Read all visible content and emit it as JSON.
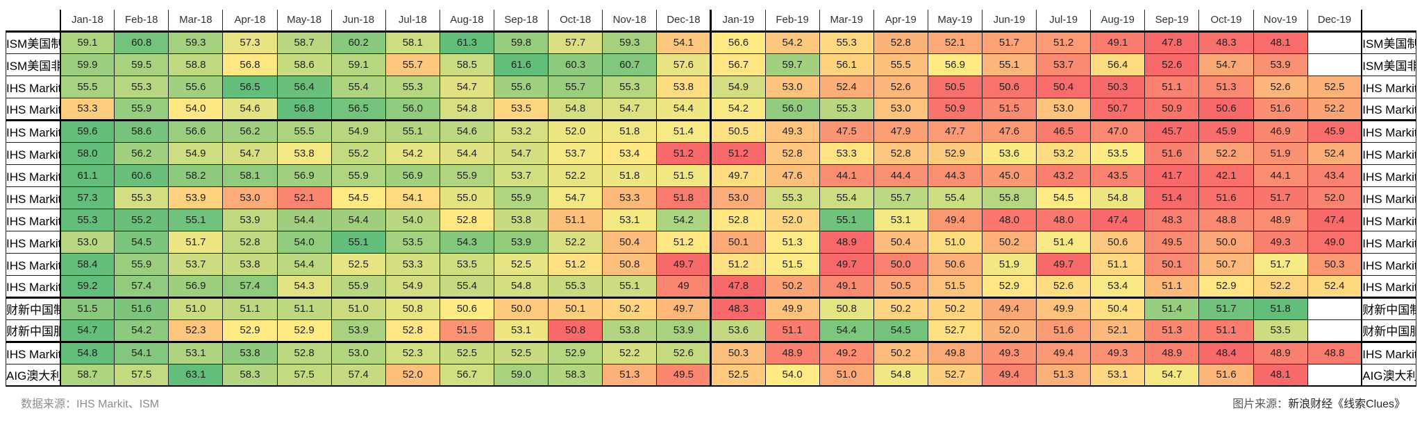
{
  "chart_data": {
    "type": "heatmap",
    "x": [
      "Jan-18",
      "Feb-18",
      "Mar-18",
      "Apr-18",
      "May-18",
      "Jun-18",
      "Jul-18",
      "Aug-18",
      "Sep-18",
      "Oct-18",
      "Nov-18",
      "Dec-18",
      "Jan-19",
      "Feb-19",
      "Mar-19",
      "Apr-19",
      "May-19",
      "Jun-19",
      "Jul-19",
      "Aug-19",
      "Sep-19",
      "Oct-19",
      "Nov-19",
      "Dec-19"
    ],
    "series": [
      {
        "name": "ISM美国制造业PMI",
        "group_end": false,
        "values": [
          "59.1",
          "60.8",
          "59.3",
          "57.3",
          "58.7",
          "60.2",
          "58.1",
          "61.3",
          "59.8",
          "57.7",
          "59.3",
          "54.1",
          "56.6",
          "54.2",
          "55.3",
          "52.8",
          "52.1",
          "51.7",
          "51.2",
          "49.1",
          "47.8",
          "48.3",
          "48.1",
          null
        ]
      },
      {
        "name": "ISM美国非制造业PMI",
        "group_end": false,
        "values": [
          "59.9",
          "59.5",
          "58.8",
          "56.8",
          "58.6",
          "59.1",
          "55.7",
          "58.5",
          "61.6",
          "60.3",
          "60.7",
          "57.6",
          "56.7",
          "59.7",
          "56.1",
          "55.5",
          "56.9",
          "55.1",
          "53.7",
          "56.4",
          "52.6",
          "54.7",
          "53.9",
          null
        ]
      },
      {
        "name": "IHS Markit美国制造业PMI",
        "group_end": false,
        "values": [
          "55.5",
          "55.3",
          "55.6",
          "56.5",
          "56.4",
          "55.4",
          "55.3",
          "54.7",
          "55.6",
          "55.7",
          "55.3",
          "53.8",
          "54.9",
          "53.0",
          "52.4",
          "52.6",
          "50.5",
          "50.6",
          "50.4",
          "50.3",
          "51.1",
          "51.3",
          "52.6",
          "52.5"
        ]
      },
      {
        "name": "IHS Markit美国服务业PMI",
        "group_end": true,
        "values": [
          "53.3",
          "55.9",
          "54.0",
          "54.6",
          "56.8",
          "56.5",
          "56.0",
          "54.8",
          "53.5",
          "54.8",
          "54.7",
          "54.4",
          "54.2",
          "56.0",
          "55.3",
          "53.0",
          "50.9",
          "51.5",
          "53.0",
          "50.7",
          "50.9",
          "50.6",
          "51.6",
          "52.2"
        ]
      },
      {
        "name": "IHS Markit欧元区制造业PMI",
        "group_end": false,
        "values": [
          "59.6",
          "58.6",
          "56.6",
          "56.2",
          "55.5",
          "54.9",
          "55.1",
          "54.6",
          "53.2",
          "52.0",
          "51.8",
          "51.4",
          "50.5",
          "49.3",
          "47.5",
          "47.9",
          "47.7",
          "47.6",
          "46.5",
          "47.0",
          "45.7",
          "45.9",
          "46.9",
          "45.9"
        ]
      },
      {
        "name": "IHS Markit欧元区服务业PMI",
        "group_end": false,
        "values": [
          "58.0",
          "56.2",
          "54.9",
          "54.7",
          "53.8",
          "55.2",
          "54.2",
          "54.4",
          "54.7",
          "53.7",
          "53.4",
          "51.2",
          "51.2",
          "52.8",
          "53.3",
          "52.8",
          "52.9",
          "53.6",
          "53.2",
          "53.5",
          "51.6",
          "52.2",
          "51.9",
          "52.4"
        ]
      },
      {
        "name": "IHS Markit德国制造业PMI",
        "group_end": false,
        "values": [
          "61.1",
          "60.6",
          "58.2",
          "58.1",
          "56.9",
          "55.9",
          "56.9",
          "55.9",
          "53.7",
          "52.2",
          "51.8",
          "51.5",
          "49.7",
          "47.6",
          "44.1",
          "44.4",
          "44.3",
          "45.0",
          "43.2",
          "43.5",
          "41.7",
          "42.1",
          "44.1",
          "43.4"
        ]
      },
      {
        "name": "IHS Markit德国服务业PMI",
        "group_end": false,
        "values": [
          "57.3",
          "55.3",
          "53.9",
          "53.0",
          "52.1",
          "54.5",
          "54.1",
          "55.0",
          "55.9",
          "54.7",
          "53.3",
          "51.8",
          "53.0",
          "55.3",
          "55.4",
          "55.7",
          "55.4",
          "55.8",
          "54.5",
          "54.8",
          "51.4",
          "51.6",
          "51.7",
          "52.0"
        ]
      },
      {
        "name": "IHS Markit英国制造业PMI",
        "group_end": false,
        "values": [
          "55.3",
          "55.2",
          "55.1",
          "53.9",
          "54.4",
          "54.4",
          "54.0",
          "52.8",
          "53.8",
          "51.1",
          "53.1",
          "54.2",
          "52.8",
          "52.0",
          "55.1",
          "53.1",
          "49.4",
          "48.0",
          "48.0",
          "47.4",
          "48.3",
          "48.8",
          "48.9",
          "47.4"
        ]
      },
      {
        "name": "IHS Markit英国服务业PMI",
        "group_end": false,
        "values": [
          "53.0",
          "54.5",
          "51.7",
          "52.8",
          "54.0",
          "55.1",
          "53.5",
          "54.3",
          "53.9",
          "52.2",
          "50.4",
          "51.2",
          "50.1",
          "51.3",
          "48.9",
          "50.4",
          "51.0",
          "50.2",
          "51.4",
          "50.6",
          "49.5",
          "50.0",
          "49.3",
          "49.0"
        ]
      },
      {
        "name": "IHS Markit法国制造业PMI",
        "group_end": false,
        "values": [
          "58.4",
          "55.9",
          "53.7",
          "53.8",
          "54.4",
          "52.5",
          "53.3",
          "53.5",
          "52.5",
          "51.2",
          "50.8",
          "49.7",
          "51.2",
          "51.5",
          "49.7",
          "50.0",
          "50.6",
          "51.9",
          "49.7",
          "51.1",
          "50.1",
          "50.7",
          "51.7",
          "50.3"
        ]
      },
      {
        "name": "IHS Markit法国服务业PMI",
        "group_end": true,
        "values": [
          "59.2",
          "57.4",
          "56.9",
          "57.4",
          "54.3",
          "55.9",
          "54.9",
          "55.4",
          "54.8",
          "55.3",
          "55.1",
          "49",
          "47.8",
          "50.2",
          "49.1",
          "50.5",
          "51.5",
          "52.9",
          "52.6",
          "53.4",
          "51.1",
          "52.9",
          "52.2",
          "52.4"
        ]
      },
      {
        "name": "财新中国制造业PMI",
        "group_end": false,
        "values": [
          "51.5",
          "51.6",
          "51.0",
          "51.1",
          "51.1",
          "51.0",
          "50.8",
          "50.6",
          "50.0",
          "50.1",
          "50.2",
          "49.7",
          "48.3",
          "49.9",
          "50.8",
          "50.2",
          "50.2",
          "49.4",
          "49.9",
          "50.4",
          "51.4",
          "51.7",
          "51.8",
          null
        ]
      },
      {
        "name": "财新中国服务业PMI",
        "group_end": true,
        "values": [
          "54.7",
          "54.2",
          "52.3",
          "52.9",
          "52.9",
          "53.9",
          "52.8",
          "51.5",
          "53.1",
          "50.8",
          "53.8",
          "53.9",
          "53.6",
          "51.1",
          "54.4",
          "54.5",
          "52.7",
          "52.0",
          "51.6",
          "52.1",
          "51.3",
          "51.1",
          "53.5",
          null
        ]
      },
      {
        "name": "IHS Markit日本制造业PMI",
        "group_end": false,
        "values": [
          "54.8",
          "54.1",
          "53.1",
          "53.8",
          "52.8",
          "53.0",
          "52.3",
          "52.5",
          "52.5",
          "52.9",
          "52.2",
          "52.6",
          "50.3",
          "48.9",
          "49.2",
          "50.2",
          "49.8",
          "49.3",
          "49.4",
          "49.3",
          "48.9",
          "48.4",
          "48.9",
          "48.8"
        ]
      },
      {
        "name": "AIG澳大利亚制造业PMI",
        "group_end": false,
        "values": [
          "58.7",
          "57.5",
          "63.1",
          "58.3",
          "57.5",
          "57.4",
          "52.0",
          "56.7",
          "59.0",
          "58.3",
          "51.3",
          "49.5",
          "52.5",
          "54.0",
          "51.0",
          "54.8",
          "52.7",
          "49.4",
          "51.3",
          "53.1",
          "54.7",
          "51.6",
          "48.1",
          null
        ]
      }
    ],
    "colorscale": {
      "min_color": "#F8696B",
      "mid_color": "#FFEB84",
      "max_color": "#63BE7B",
      "mode": "per-row, midpoint at 50th percentile"
    },
    "year_separator_after": "Dec-18",
    "legend_position": "none"
  },
  "footer": {
    "source_label": "数据来源：",
    "source_value": "IHS Markit、ISM",
    "credit_label": "图片来源：",
    "credit_value": "新浪财经《线索Clues》"
  }
}
